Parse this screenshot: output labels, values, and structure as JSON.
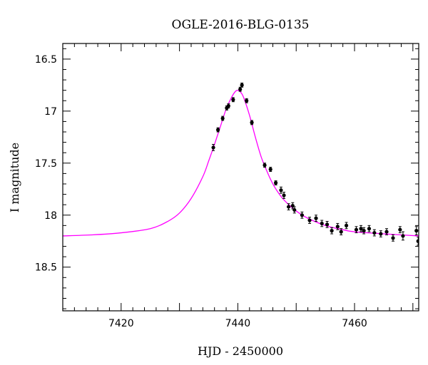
{
  "chart_data": {
    "type": "scatter",
    "title": "OGLE-2016-BLG-0135",
    "xlabel": "HJD - 2450000",
    "ylabel": "I magnitude",
    "xlim": [
      7410,
      7471
    ],
    "ylim": [
      16.35,
      18.92
    ],
    "y_inverted": true,
    "grid": false,
    "legend": "none",
    "x_ticks": [
      7420,
      7440,
      7460
    ],
    "x_tick_labels": [
      "7420",
      "7440",
      "7460"
    ],
    "y_ticks": [
      16.5,
      17,
      17.5,
      18,
      18.5
    ],
    "y_tick_labels": [
      "16.5",
      "17",
      "17.5",
      "18",
      "18.5"
    ],
    "colors": {
      "model": "#ff00ff",
      "data": "#000000",
      "frame": "#000000"
    },
    "model_curve": {
      "name": "",
      "x": [
        7410,
        7415,
        7420,
        7425,
        7428,
        7430,
        7432,
        7434,
        7435,
        7436,
        7437,
        7438,
        7439,
        7439.6,
        7440,
        7440.5,
        7441,
        7442,
        7443,
        7444,
        7445,
        7446,
        7447,
        7448,
        7450,
        7452,
        7455,
        7458,
        7460,
        7465,
        7471
      ],
      "y": [
        18.2,
        18.19,
        18.17,
        18.13,
        18.06,
        17.98,
        17.84,
        17.63,
        17.48,
        17.32,
        17.15,
        16.98,
        16.86,
        16.81,
        16.8,
        16.82,
        16.87,
        17.04,
        17.25,
        17.44,
        17.58,
        17.7,
        17.79,
        17.86,
        17.96,
        18.03,
        18.1,
        18.14,
        18.16,
        18.18,
        18.2
      ]
    },
    "observations": {
      "name": "",
      "x": [
        7435.8,
        7436.6,
        7437.4,
        7438.1,
        7438.4,
        7439.2,
        7440.4,
        7440.7,
        7441.5,
        7442.4,
        7444.6,
        7445.6,
        7446.5,
        7447.4,
        7447.9,
        7448.7,
        7449.4,
        7449.7,
        7451.0,
        7452.3,
        7453.4,
        7454.4,
        7455.3,
        7456.1,
        7457.1,
        7457.7,
        7458.6,
        7460.3,
        7461.1,
        7461.6,
        7462.5,
        7463.4,
        7464.5,
        7465.5,
        7466.6,
        7467.8,
        7468.3,
        7470.6,
        7470.9
      ],
      "y": [
        17.35,
        17.18,
        17.07,
        16.97,
        16.95,
        16.89,
        16.79,
        16.75,
        16.9,
        17.11,
        17.52,
        17.56,
        17.69,
        17.76,
        17.81,
        17.92,
        17.91,
        17.95,
        18.0,
        18.05,
        18.03,
        18.08,
        18.09,
        18.15,
        18.11,
        18.16,
        18.1,
        18.14,
        18.13,
        18.15,
        18.13,
        18.17,
        18.18,
        18.16,
        18.22,
        18.14,
        18.2,
        18.15,
        18.25
      ],
      "err": [
        0.03,
        0.02,
        0.02,
        0.02,
        0.02,
        0.02,
        0.02,
        0.02,
        0.02,
        0.02,
        0.02,
        0.02,
        0.02,
        0.03,
        0.03,
        0.03,
        0.03,
        0.03,
        0.03,
        0.03,
        0.03,
        0.03,
        0.03,
        0.03,
        0.03,
        0.03,
        0.03,
        0.03,
        0.03,
        0.03,
        0.03,
        0.03,
        0.03,
        0.03,
        0.03,
        0.03,
        0.04,
        0.04,
        0.04
      ]
    }
  }
}
